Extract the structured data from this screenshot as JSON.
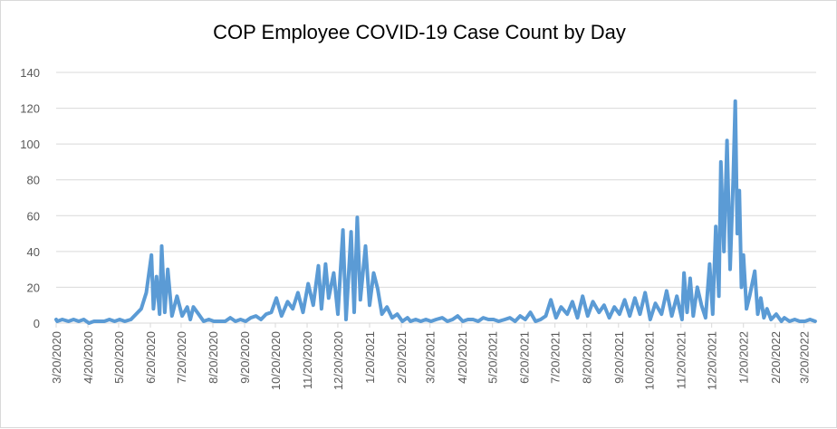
{
  "chart_data": {
    "type": "line",
    "title": "COP Employee COVID-19 Case Count by Day",
    "xlabel": "",
    "ylabel": "",
    "ylim": [
      0,
      140
    ],
    "yticks": [
      0,
      20,
      40,
      60,
      80,
      100,
      120,
      140
    ],
    "xlim": [
      "2020-03-20",
      "2022-04-01"
    ],
    "xtick_labels": [
      "3/20/2020",
      "4/20/2020",
      "5/20/2020",
      "6/20/2020",
      "7/20/2020",
      "8/20/2020",
      "9/20/2020",
      "10/20/2020",
      "11/20/2020",
      "12/20/2020",
      "1/20/2021",
      "2/20/2021",
      "3/20/2021",
      "4/20/2021",
      "5/20/2021",
      "6/20/2021",
      "7/20/2021",
      "8/20/2021",
      "9/20/2021",
      "10/20/2021",
      "11/20/2021",
      "12/20/2021",
      "1/20/2022",
      "2/20/2022",
      "3/20/2022"
    ],
    "grid": true,
    "legend": "none",
    "line_color": "#5B9BD5",
    "series": [
      {
        "points": [
          [
            "2020-03-20",
            2
          ],
          [
            "2020-03-21",
            1
          ],
          [
            "2020-03-26",
            2
          ],
          [
            "2020-04-01",
            1
          ],
          [
            "2020-04-06",
            2
          ],
          [
            "2020-04-11",
            1
          ],
          [
            "2020-04-16",
            2
          ],
          [
            "2020-04-21",
            0
          ],
          [
            "2020-04-26",
            1
          ],
          [
            "2020-05-01",
            1
          ],
          [
            "2020-05-06",
            1
          ],
          [
            "2020-05-11",
            2
          ],
          [
            "2020-05-16",
            1
          ],
          [
            "2020-05-21",
            2
          ],
          [
            "2020-05-26",
            1
          ],
          [
            "2020-06-01",
            2
          ],
          [
            "2020-06-06",
            5
          ],
          [
            "2020-06-11",
            8
          ],
          [
            "2020-06-16",
            17
          ],
          [
            "2020-06-21",
            38
          ],
          [
            "2020-06-23",
            8
          ],
          [
            "2020-06-26",
            26
          ],
          [
            "2020-06-29",
            5
          ],
          [
            "2020-07-01",
            43
          ],
          [
            "2020-07-04",
            6
          ],
          [
            "2020-07-07",
            30
          ],
          [
            "2020-07-11",
            4
          ],
          [
            "2020-07-16",
            15
          ],
          [
            "2020-07-21",
            4
          ],
          [
            "2020-07-26",
            9
          ],
          [
            "2020-07-29",
            2
          ],
          [
            "2020-08-01",
            9
          ],
          [
            "2020-08-06",
            5
          ],
          [
            "2020-08-11",
            1
          ],
          [
            "2020-08-16",
            2
          ],
          [
            "2020-08-21",
            1
          ],
          [
            "2020-08-26",
            1
          ],
          [
            "2020-09-01",
            1
          ],
          [
            "2020-09-06",
            3
          ],
          [
            "2020-09-11",
            1
          ],
          [
            "2020-09-16",
            2
          ],
          [
            "2020-09-21",
            1
          ],
          [
            "2020-09-26",
            3
          ],
          [
            "2020-10-01",
            4
          ],
          [
            "2020-10-06",
            2
          ],
          [
            "2020-10-11",
            5
          ],
          [
            "2020-10-16",
            6
          ],
          [
            "2020-10-21",
            14
          ],
          [
            "2020-10-26",
            4
          ],
          [
            "2020-11-01",
            12
          ],
          [
            "2020-11-06",
            8
          ],
          [
            "2020-11-11",
            17
          ],
          [
            "2020-11-16",
            6
          ],
          [
            "2020-11-21",
            22
          ],
          [
            "2020-11-26",
            10
          ],
          [
            "2020-12-01",
            32
          ],
          [
            "2020-12-04",
            8
          ],
          [
            "2020-12-08",
            33
          ],
          [
            "2020-12-11",
            14
          ],
          [
            "2020-12-16",
            28
          ],
          [
            "2020-12-20",
            5
          ],
          [
            "2020-12-25",
            52
          ],
          [
            "2020-12-28",
            2
          ],
          [
            "2021-01-02",
            51
          ],
          [
            "2021-01-05",
            6
          ],
          [
            "2021-01-08",
            59
          ],
          [
            "2021-01-11",
            13
          ],
          [
            "2021-01-16",
            43
          ],
          [
            "2021-01-20",
            10
          ],
          [
            "2021-01-24",
            28
          ],
          [
            "2021-01-28",
            19
          ],
          [
            "2021-02-01",
            5
          ],
          [
            "2021-02-06",
            9
          ],
          [
            "2021-02-11",
            3
          ],
          [
            "2021-02-16",
            5
          ],
          [
            "2021-02-21",
            1
          ],
          [
            "2021-02-26",
            3
          ],
          [
            "2021-03-01",
            1
          ],
          [
            "2021-03-06",
            2
          ],
          [
            "2021-03-11",
            1
          ],
          [
            "2021-03-16",
            2
          ],
          [
            "2021-03-21",
            1
          ],
          [
            "2021-03-26",
            2
          ],
          [
            "2021-04-01",
            3
          ],
          [
            "2021-04-06",
            1
          ],
          [
            "2021-04-11",
            2
          ],
          [
            "2021-04-16",
            4
          ],
          [
            "2021-04-21",
            1
          ],
          [
            "2021-04-26",
            2
          ],
          [
            "2021-05-01",
            2
          ],
          [
            "2021-05-06",
            1
          ],
          [
            "2021-05-11",
            3
          ],
          [
            "2021-05-16",
            2
          ],
          [
            "2021-05-21",
            2
          ],
          [
            "2021-05-26",
            1
          ],
          [
            "2021-06-01",
            2
          ],
          [
            "2021-06-06",
            3
          ],
          [
            "2021-06-11",
            1
          ],
          [
            "2021-06-16",
            4
          ],
          [
            "2021-06-21",
            2
          ],
          [
            "2021-06-26",
            6
          ],
          [
            "2021-07-01",
            1
          ],
          [
            "2021-07-06",
            2
          ],
          [
            "2021-07-11",
            4
          ],
          [
            "2021-07-16",
            13
          ],
          [
            "2021-07-21",
            3
          ],
          [
            "2021-07-26",
            9
          ],
          [
            "2021-08-01",
            5
          ],
          [
            "2021-08-06",
            12
          ],
          [
            "2021-08-11",
            3
          ],
          [
            "2021-08-16",
            15
          ],
          [
            "2021-08-21",
            4
          ],
          [
            "2021-08-26",
            12
          ],
          [
            "2021-09-01",
            6
          ],
          [
            "2021-09-06",
            10
          ],
          [
            "2021-09-11",
            3
          ],
          [
            "2021-09-16",
            9
          ],
          [
            "2021-09-21",
            5
          ],
          [
            "2021-09-26",
            13
          ],
          [
            "2021-10-01",
            4
          ],
          [
            "2021-10-06",
            14
          ],
          [
            "2021-10-11",
            5
          ],
          [
            "2021-10-16",
            17
          ],
          [
            "2021-10-21",
            2
          ],
          [
            "2021-10-26",
            11
          ],
          [
            "2021-11-01",
            5
          ],
          [
            "2021-11-06",
            18
          ],
          [
            "2021-11-11",
            4
          ],
          [
            "2021-11-16",
            15
          ],
          [
            "2021-11-21",
            2
          ],
          [
            "2021-11-23",
            28
          ],
          [
            "2021-11-26",
            6
          ],
          [
            "2021-11-29",
            25
          ],
          [
            "2021-12-02",
            4
          ],
          [
            "2021-12-06",
            20
          ],
          [
            "2021-12-10",
            10
          ],
          [
            "2021-12-14",
            3
          ],
          [
            "2021-12-18",
            33
          ],
          [
            "2021-12-21",
            5
          ],
          [
            "2021-12-24",
            54
          ],
          [
            "2021-12-27",
            15
          ],
          [
            "2021-12-29",
            90
          ],
          [
            "2022-01-01",
            40
          ],
          [
            "2022-01-04",
            102
          ],
          [
            "2022-01-07",
            30
          ],
          [
            "2022-01-10",
            80
          ],
          [
            "2022-01-12",
            124
          ],
          [
            "2022-01-14",
            50
          ],
          [
            "2022-01-16",
            74
          ],
          [
            "2022-01-18",
            20
          ],
          [
            "2022-01-20",
            38
          ],
          [
            "2022-01-23",
            8
          ],
          [
            "2022-01-26",
            15
          ],
          [
            "2022-01-31",
            29
          ],
          [
            "2022-02-03",
            5
          ],
          [
            "2022-02-06",
            14
          ],
          [
            "2022-02-09",
            3
          ],
          [
            "2022-02-12",
            8
          ],
          [
            "2022-02-16",
            2
          ],
          [
            "2022-02-21",
            5
          ],
          [
            "2022-02-26",
            1
          ],
          [
            "2022-03-01",
            3
          ],
          [
            "2022-03-06",
            1
          ],
          [
            "2022-03-11",
            2
          ],
          [
            "2022-03-16",
            1
          ],
          [
            "2022-03-21",
            1
          ],
          [
            "2022-03-26",
            2
          ],
          [
            "2022-03-31",
            1
          ]
        ]
      }
    ]
  }
}
